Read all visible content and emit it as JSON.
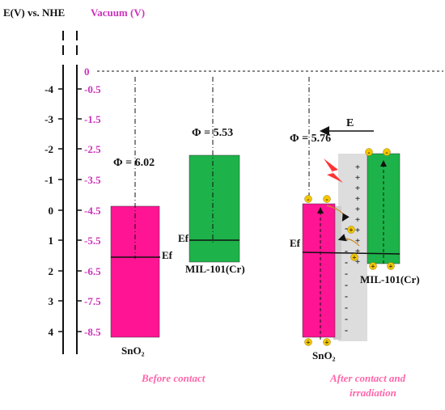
{
  "header": {
    "nhe_title": "E(V) vs. NHE",
    "vacuum_title": "Vacuum (V)"
  },
  "axes": {
    "nhe_ticks": [
      "-4",
      "-3",
      "-2",
      "-1",
      "0",
      "1",
      "2",
      "3",
      "4"
    ],
    "vacuum_ticks": [
      "0",
      "-0.5",
      "-1.5",
      "-2.5",
      "-3.5",
      "-4.5",
      "-5.5",
      "-6.5",
      "-7.5",
      "-8.5"
    ]
  },
  "before_contact": {
    "caption": "Before contact",
    "sno2": {
      "label": "SnO₂",
      "phi": "Φ = 6.02",
      "fermi": "Ef"
    },
    "mil": {
      "label": "MIL-101(Cr)",
      "phi": "Φ = 5.53",
      "fermi": "Ef"
    }
  },
  "after_contact": {
    "caption_line1": "After contact and",
    "caption_line2": "irradiation",
    "sno2_label": "SnO₂",
    "mil_label": "MIL-101(Cr)",
    "phi": "Φ = 5.76",
    "fermi": "Ef",
    "field": "E"
  },
  "colors": {
    "sno2": "#ff1493",
    "mil": "#1db34a",
    "vacuum_text": "#cc33bb",
    "caption": "#ff66aa"
  }
}
